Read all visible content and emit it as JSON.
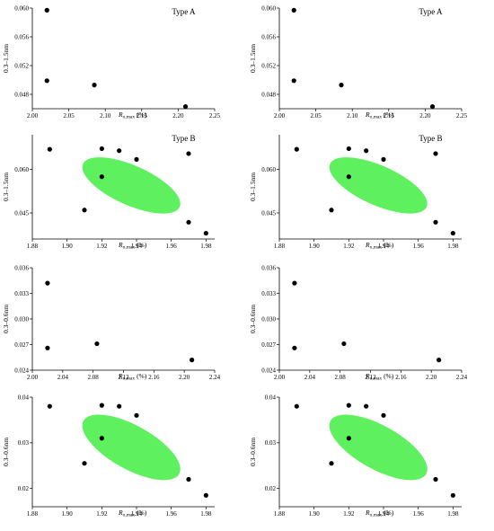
{
  "chart_data": [
    {
      "id": "p1",
      "type": "scatter",
      "annotation": "Type A",
      "xlabel": {
        "base": "R",
        "sub": "o,max",
        "unit": " (%)"
      },
      "ylabel": "0.3–1.5nm",
      "xlim": [
        2.0,
        2.25
      ],
      "ylim": [
        0.046,
        0.06
      ],
      "xticks": [
        "2.00",
        "2.05",
        "2.10",
        "2.15",
        "2.20",
        "2.25"
      ],
      "yticks": [
        "0.048",
        "0.052",
        "0.056",
        "0.060"
      ],
      "points": [
        {
          "x": 2.02,
          "y": 0.0597
        },
        {
          "x": 2.02,
          "y": 0.0499
        },
        {
          "x": 2.085,
          "y": 0.0493
        },
        {
          "x": 2.21,
          "y": 0.0463
        }
      ]
    },
    {
      "id": "p2",
      "type": "scatter",
      "annotation": "Type A",
      "xlabel": {
        "base": "R",
        "sub": "o,max",
        "unit": " (%)"
      },
      "ylabel": "0.3–1.5nm",
      "xlim": [
        2.0,
        2.25
      ],
      "ylim": [
        0.046,
        0.06
      ],
      "xticks": [
        "2.00",
        "2.05",
        "2.10",
        "2.15",
        "2.20",
        "2.25"
      ],
      "yticks": [
        "0.048",
        "0.052",
        "0.056",
        "0.060"
      ],
      "points": [
        {
          "x": 2.02,
          "y": 0.0597
        },
        {
          "x": 2.02,
          "y": 0.0499
        },
        {
          "x": 2.085,
          "y": 0.0493
        },
        {
          "x": 2.21,
          "y": 0.0463
        }
      ]
    },
    {
      "id": "p3",
      "type": "scatter",
      "annotation": "Type B",
      "xlabel": {
        "base": "R",
        "sub": "o,max",
        "unit": " (%)"
      },
      "ylabel": "0.3–1.5nm",
      "xlim": [
        1.88,
        1.985
      ],
      "ylim": [
        0.036,
        0.072
      ],
      "xticks": [
        "1.88",
        "1.90",
        "1.92",
        "1.94",
        "1.96",
        "1.98"
      ],
      "yticks": [
        "0.045",
        "0.060"
      ],
      "highlight": "#5ef05e",
      "points": [
        {
          "x": 1.89,
          "y": 0.067
        },
        {
          "x": 1.92,
          "y": 0.0672
        },
        {
          "x": 1.93,
          "y": 0.0665
        },
        {
          "x": 1.94,
          "y": 0.0635
        },
        {
          "x": 1.97,
          "y": 0.0655
        },
        {
          "x": 1.92,
          "y": 0.0575
        },
        {
          "x": 1.91,
          "y": 0.046
        },
        {
          "x": 1.97,
          "y": 0.0418
        },
        {
          "x": 1.98,
          "y": 0.038
        }
      ]
    },
    {
      "id": "p4",
      "type": "scatter",
      "annotation": "Type B",
      "xlabel": {
        "base": "R",
        "sub": "o,max",
        "unit": " (%)"
      },
      "ylabel": "0.3–1.5nm",
      "xlim": [
        1.88,
        1.985
      ],
      "ylim": [
        0.036,
        0.072
      ],
      "xticks": [
        "1.88",
        "1.90",
        "1.92",
        "1.94",
        "1.96",
        "1.98"
      ],
      "yticks": [
        "0.045",
        "0.060"
      ],
      "highlight": "#5ef05e",
      "points": [
        {
          "x": 1.89,
          "y": 0.067
        },
        {
          "x": 1.92,
          "y": 0.0672
        },
        {
          "x": 1.93,
          "y": 0.0665
        },
        {
          "x": 1.94,
          "y": 0.0635
        },
        {
          "x": 1.97,
          "y": 0.0655
        },
        {
          "x": 1.92,
          "y": 0.0575
        },
        {
          "x": 1.91,
          "y": 0.046
        },
        {
          "x": 1.97,
          "y": 0.0418
        },
        {
          "x": 1.98,
          "y": 0.038
        }
      ]
    },
    {
      "id": "p5",
      "type": "scatter",
      "annotation": "",
      "xlabel": {
        "base": "R",
        "sub": "o,max",
        "unit": " (%)"
      },
      "ylabel": "0.3–0.6nm",
      "xlim": [
        2.0,
        2.24
      ],
      "ylim": [
        0.024,
        0.036
      ],
      "xticks": [
        "2.00",
        "2.04",
        "2.08",
        "2.12",
        "2.16",
        "2.20",
        "2.24"
      ],
      "yticks": [
        "0.024",
        "0.027",
        "0.030",
        "0.033",
        "0.036"
      ],
      "points": [
        {
          "x": 2.02,
          "y": 0.0342
        },
        {
          "x": 2.02,
          "y": 0.0266
        },
        {
          "x": 2.085,
          "y": 0.0271
        },
        {
          "x": 2.21,
          "y": 0.0252
        }
      ]
    },
    {
      "id": "p6",
      "type": "scatter",
      "annotation": "",
      "xlabel": {
        "base": "R",
        "sub": "o,max",
        "unit": " (%)"
      },
      "ylabel": "0.3–0.6nm",
      "xlim": [
        2.0,
        2.24
      ],
      "ylim": [
        0.024,
        0.036
      ],
      "xticks": [
        "2.00",
        "2.04",
        "2.08",
        "2.12",
        "2.16",
        "2.20",
        "2.24"
      ],
      "yticks": [
        "0.024",
        "0.027",
        "0.030",
        "0.033",
        "0.036"
      ],
      "points": [
        {
          "x": 2.02,
          "y": 0.0342
        },
        {
          "x": 2.02,
          "y": 0.0266
        },
        {
          "x": 2.085,
          "y": 0.0271
        },
        {
          "x": 2.21,
          "y": 0.0252
        }
      ]
    },
    {
      "id": "p7",
      "type": "scatter",
      "annotation": "",
      "xlabel": {
        "base": "R",
        "sub": "o,max",
        "unit": " (%)"
      },
      "ylabel": "0.3–0.6nm",
      "xlim": [
        1.88,
        1.985
      ],
      "ylim": [
        0.016,
        0.04
      ],
      "xticks": [
        "1.88",
        "1.90",
        "1.92",
        "1.94",
        "1.96",
        "1.98"
      ],
      "yticks": [
        "0.02",
        "0.03",
        "0.04"
      ],
      "highlight": "#5ef05e",
      "points": [
        {
          "x": 1.89,
          "y": 0.038
        },
        {
          "x": 1.92,
          "y": 0.0382
        },
        {
          "x": 1.93,
          "y": 0.038
        },
        {
          "x": 1.94,
          "y": 0.036
        },
        {
          "x": 1.92,
          "y": 0.031
        },
        {
          "x": 1.91,
          "y": 0.0255
        },
        {
          "x": 1.97,
          "y": 0.022
        },
        {
          "x": 1.98,
          "y": 0.0185
        }
      ]
    },
    {
      "id": "p8",
      "type": "scatter",
      "annotation": "",
      "xlabel": {
        "base": "R",
        "sub": "o,max",
        "unit": " (%)"
      },
      "ylabel": "0.3–0.6nm",
      "xlim": [
        1.88,
        1.985
      ],
      "ylim": [
        0.016,
        0.04
      ],
      "xticks": [
        "1.88",
        "1.90",
        "1.92",
        "1.94",
        "1.96",
        "1.98"
      ],
      "yticks": [
        "0.02",
        "0.03",
        "0.04"
      ],
      "highlight": "#5ef05e",
      "points": [
        {
          "x": 1.89,
          "y": 0.038
        },
        {
          "x": 1.92,
          "y": 0.0382
        },
        {
          "x": 1.93,
          "y": 0.038
        },
        {
          "x": 1.94,
          "y": 0.036
        },
        {
          "x": 1.92,
          "y": 0.031
        },
        {
          "x": 1.91,
          "y": 0.0255
        },
        {
          "x": 1.97,
          "y": 0.022
        },
        {
          "x": 1.98,
          "y": 0.0185
        }
      ]
    }
  ]
}
